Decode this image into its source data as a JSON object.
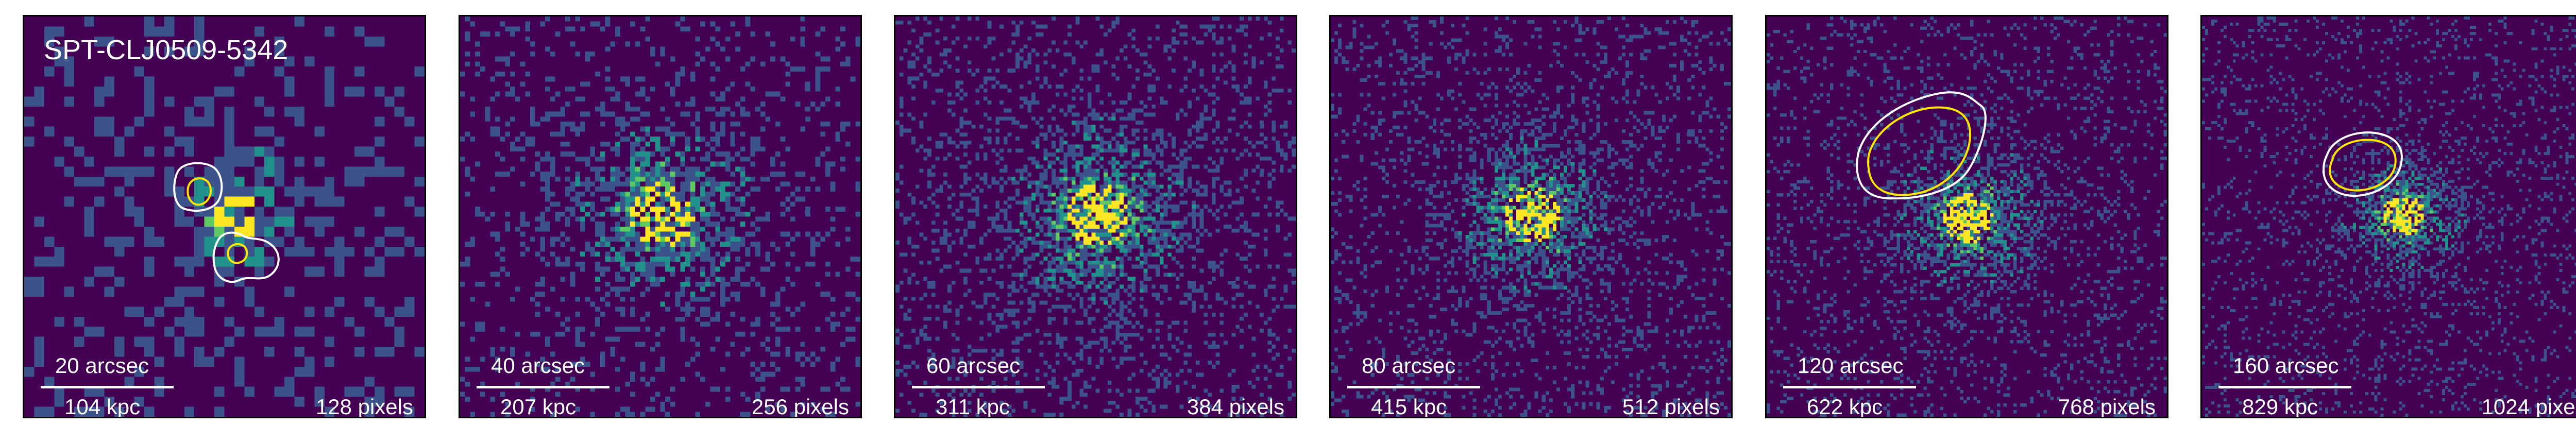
{
  "cluster_name": "SPT-CLJ0509-5342",
  "colormap": {
    "background": "#440154",
    "low": "#3b528b",
    "mid": "#21918c",
    "high": "#5ec962",
    "peak": "#fde725"
  },
  "contour_colors": {
    "outer": "#ffffff",
    "inner": "#ffe600"
  },
  "panels": [
    {
      "arcsec": "20 arcsec",
      "kpc": "104 kpc",
      "pixels": "128 pixels"
    },
    {
      "arcsec": "40 arcsec",
      "kpc": "207 kpc",
      "pixels": "256 pixels"
    },
    {
      "arcsec": "60 arcsec",
      "kpc": "311 kpc",
      "pixels": "384 pixels"
    },
    {
      "arcsec": "80 arcsec",
      "kpc": "415 kpc",
      "pixels": "512 pixels"
    },
    {
      "arcsec": "120 arcsec",
      "kpc": "622 kpc",
      "pixels": "768 pixels"
    },
    {
      "arcsec": "160 arcsec",
      "kpc": "829 kpc",
      "pixels": "1024 pixels"
    }
  ]
}
